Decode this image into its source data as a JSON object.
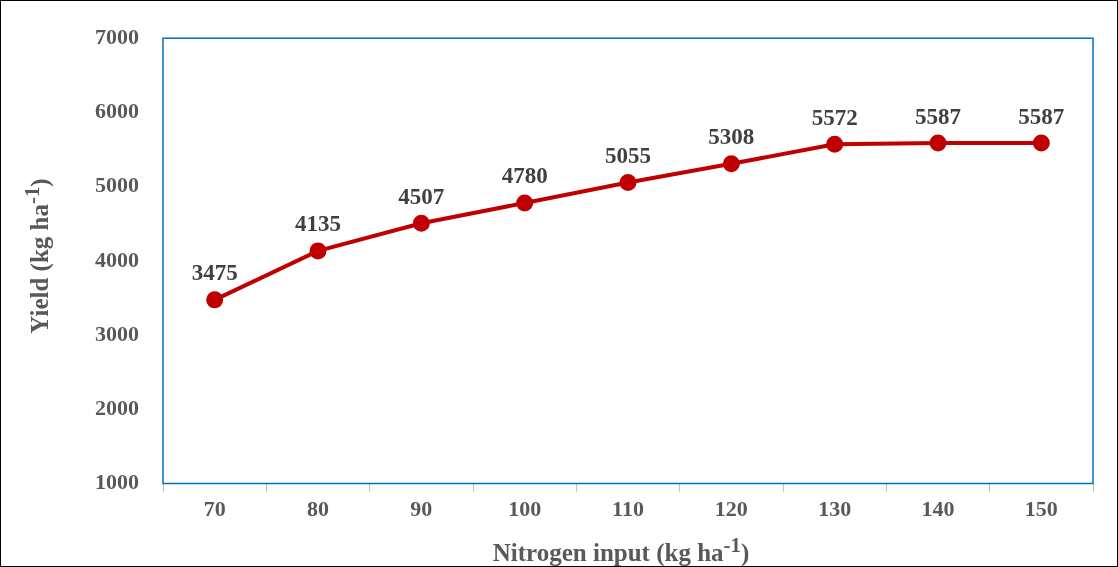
{
  "chart_data": {
    "type": "line",
    "xlabel": "Nitrogen input (kg ha$^{-1}$)",
    "ylabel": "Yield (kg ha$^{-1}$)",
    "categories": [
      "70",
      "80",
      "90",
      "100",
      "110",
      "120",
      "130",
      "140",
      "150"
    ],
    "series": [
      {
        "color": "#c00000",
        "values": [
          3475,
          4135,
          4507,
          4780,
          5055,
          5308,
          5572,
          5587,
          5587
        ]
      }
    ],
    "ylim": [
      1000,
      7000
    ],
    "yticks": [
      1000,
      2000,
      3000,
      4000,
      5000,
      6000,
      7000
    ],
    "grid": false,
    "legend": false,
    "marker": "circle",
    "line_style": "solid",
    "data_labels": true
  }
}
